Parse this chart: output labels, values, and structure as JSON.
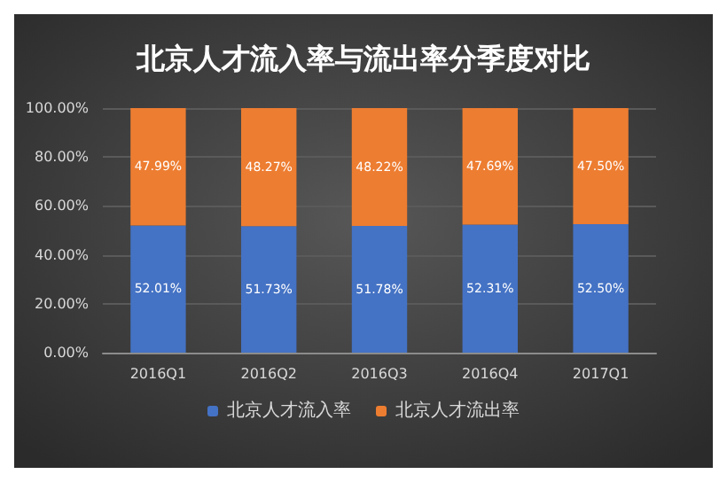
{
  "chart_data": {
    "type": "bar",
    "title": "北京人才流入率与流出率分季度对比",
    "categories": [
      "2016Q1",
      "2016Q2",
      "2016Q3",
      "2016Q4",
      "2017Q1"
    ],
    "stacked": true,
    "series": [
      {
        "name": "北京人才流入率",
        "color": "#4472c4",
        "values": [
          52.01,
          51.73,
          51.78,
          52.31,
          52.5
        ],
        "value_labels": [
          "52.01%",
          "51.73%",
          "51.78%",
          "52.31%",
          "52.50%"
        ]
      },
      {
        "name": "北京人才流出率",
        "color": "#ed7d31",
        "values": [
          47.99,
          48.27,
          48.22,
          47.69,
          47.5
        ],
        "value_labels": [
          "47.99%",
          "48.27%",
          "48.22%",
          "47.69%",
          "47.50%"
        ]
      }
    ],
    "ylim": [
      0,
      100
    ],
    "yticks": [
      {
        "value": 0,
        "label": "0.00%"
      },
      {
        "value": 20,
        "label": "20.00%"
      },
      {
        "value": 40,
        "label": "40.00%"
      },
      {
        "value": 60,
        "label": "60.00%"
      },
      {
        "value": 80,
        "label": "80.00%"
      },
      {
        "value": 100,
        "label": "100.00%"
      }
    ],
    "grid": "y",
    "legend": "bottom"
  }
}
